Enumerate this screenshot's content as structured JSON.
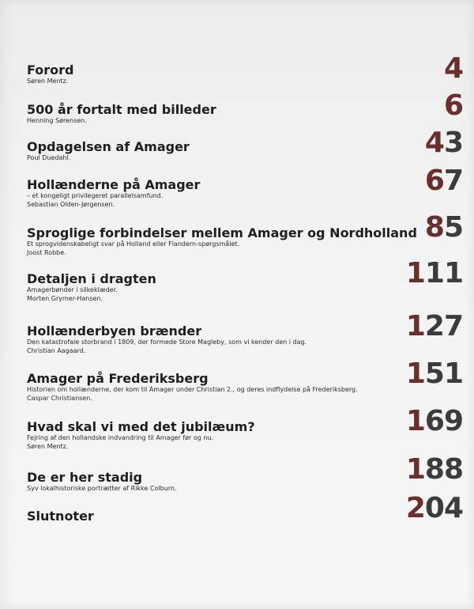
{
  "toc": [
    {
      "title": "Forord",
      "lines": [
        "Søren Mentz."
      ],
      "page": "4"
    },
    {
      "title": "500 år fortalt med billeder",
      "lines": [
        "Henning Sørensen."
      ],
      "page": "6"
    },
    {
      "title": "Opdagelsen af Amager",
      "lines": [
        "Poul Duedahl."
      ],
      "page": "43"
    },
    {
      "title": "Hollænderne på Amager",
      "lines": [
        "– et kongeligt privilegeret parallelsamfund.",
        "Sebastian Olden-Jørgensen."
      ],
      "page": "67"
    },
    {
      "title": "Sproglige forbindelser mellem Amager og Nordholland",
      "lines": [
        "Et sprogvidenskabeligt svar på Holland eller Flandern-spørgsmålet.",
        "Joost Robbe."
      ],
      "page": "85"
    },
    {
      "title": "Detaljen i dragten",
      "lines": [
        "Amagerbønder i silkeklæder.",
        "Morten Grymer-Hansen."
      ],
      "page": "111"
    },
    {
      "title": "Hollænderbyen brænder",
      "lines": [
        "Den katastrofale storbrand i 1809, der formede Store Magleby, som vi kender den i dag.",
        "Christian Aagaard."
      ],
      "page": "127"
    },
    {
      "title": "Amager på Frederiksberg",
      "lines": [
        "Historien om hollænderne, der kom til Amager under Christian 2., og deres indflydelse på Frederiksberg.",
        "Caspar Christiansen."
      ],
      "page": "151"
    },
    {
      "title": "Hvad skal vi med det jubilæum?",
      "lines": [
        "Fejring af den hollandske indvandring til Amager før og nu.",
        "Søren Mentz."
      ],
      "page": "169"
    },
    {
      "title": "De er her stadig",
      "lines": [
        "Syv lokalhistoriske portrætter af Rikke Colburn."
      ],
      "page": "188"
    },
    {
      "title": "Slutnoter",
      "lines": [],
      "page": "204"
    }
  ],
  "colors": {
    "number_primary": "#6b2e2b",
    "number_secondary": "#3d3c3c"
  }
}
